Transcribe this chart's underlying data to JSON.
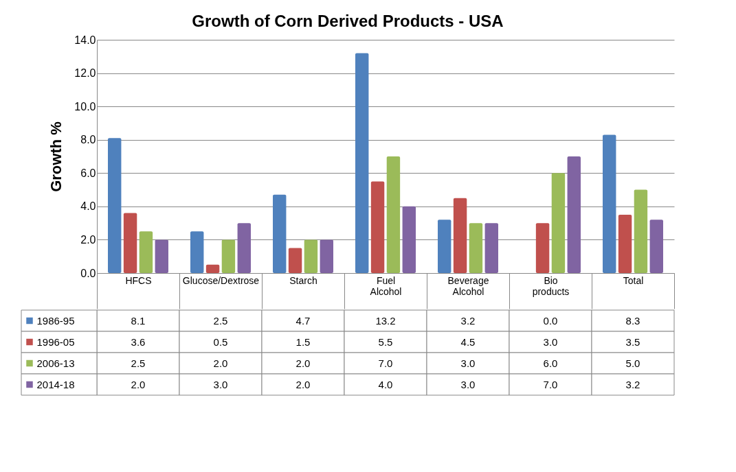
{
  "chart_data": {
    "type": "bar",
    "title": "Growth of Corn Derived Products - USA",
    "ylabel": "Growth  %",
    "categories": [
      "HFCS",
      "Glucose/Dextrose",
      "Starch",
      "Fuel Alcohol",
      "Beverage Alcohol",
      "Bio products",
      "Total"
    ],
    "series": [
      {
        "name": "1986-95",
        "color": "#4f81bd",
        "values": [
          8.1,
          2.5,
          4.7,
          13.2,
          3.2,
          0.0,
          8.3
        ],
        "value_labels": [
          "8.1",
          "2.5",
          "4.7",
          "13.2",
          "3.2",
          "0.0",
          "8.3"
        ]
      },
      {
        "name": "1996-05",
        "color": "#c0504d",
        "values": [
          3.6,
          0.5,
          1.5,
          5.5,
          4.5,
          3.0,
          3.5
        ],
        "value_labels": [
          "3.6",
          "0.5",
          "1.5",
          "5.5",
          "4.5",
          "3.0",
          "3.5"
        ]
      },
      {
        "name": "2006-13",
        "color": "#9bbb59",
        "values": [
          2.5,
          2.0,
          2.0,
          7.0,
          3.0,
          6.0,
          5.0
        ],
        "value_labels": [
          "2.5",
          "2.0",
          "2.0",
          "7.0",
          "3.0",
          "6.0",
          "5.0"
        ]
      },
      {
        "name": "2014-18",
        "color": "#8064a2",
        "values": [
          2.0,
          3.0,
          2.0,
          4.0,
          3.0,
          7.0,
          3.2
        ],
        "value_labels": [
          "2.0",
          "3.0",
          "2.0",
          "4.0",
          "3.0",
          "7.0",
          "3.2"
        ]
      }
    ],
    "ylim": [
      0,
      14
    ],
    "yticks": [
      {
        "value": 0,
        "label": "0.0"
      },
      {
        "value": 2,
        "label": "2.0"
      },
      {
        "value": 4,
        "label": "4.0"
      },
      {
        "value": 6,
        "label": "6.0"
      },
      {
        "value": 8,
        "label": "8.0"
      },
      {
        "value": 10,
        "label": "10.0"
      },
      {
        "value": 12,
        "label": "12.0"
      },
      {
        "value": 14,
        "label": "14.0"
      }
    ],
    "grid": "y",
    "legend": "bottom"
  }
}
